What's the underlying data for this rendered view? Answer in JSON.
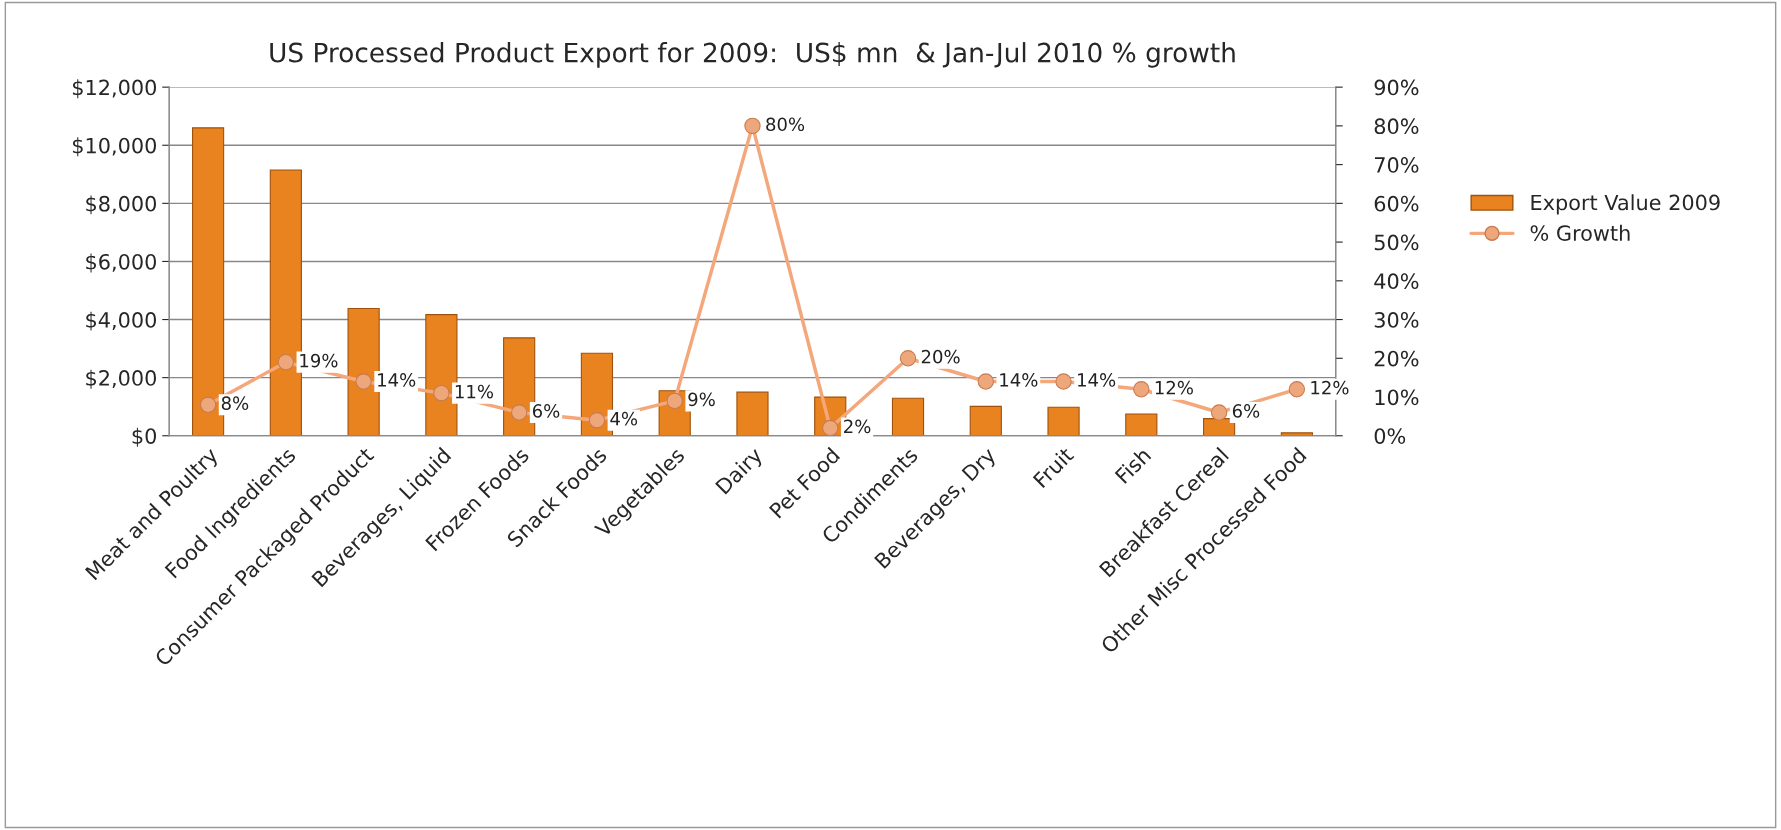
{
  "chart_data": {
    "type": "bar",
    "title": "US Processed Product Export for 2009:  US$ mn  & Jan-Jul 2010 % growth",
    "categories": [
      "Meat and Poultry",
      "Food Ingredients",
      "Consumer Packaged Product",
      "Beverages, Liquid",
      "Frozen Foods",
      "Snack Foods",
      "Vegetables",
      "Dairy",
      "Pet Food",
      "Condiments",
      "Beverages, Dry",
      "Fruit",
      "Fish",
      "Breakfast Cereal",
      "Other Misc Processed Food"
    ],
    "series": [
      {
        "name": "Export Value 2009",
        "color": "#e8831f",
        "values": [
          10600,
          9150,
          4380,
          4170,
          3370,
          2840,
          1550,
          1500,
          1330,
          1290,
          1010,
          980,
          750,
          590,
          100
        ]
      },
      {
        "name": "% Growth",
        "type": "line",
        "axis": "y2",
        "color": "#f5a77c",
        "marker": "circle",
        "values": [
          8,
          19,
          14,
          11,
          6,
          4,
          9,
          80,
          2,
          20,
          14,
          14,
          12,
          6,
          12
        ],
        "value_labels": [
          "8%",
          "19%",
          "14%",
          "11%",
          "6%",
          "4%",
          "9%",
          "80%",
          "2%",
          "20%",
          "14%",
          "14%",
          "12%",
          "6%",
          "12%"
        ]
      }
    ],
    "ylim": [
      0,
      12000
    ],
    "yticks": [
      {
        "value": 0,
        "label": "$0"
      },
      {
        "value": 2000,
        "label": "$2,000"
      },
      {
        "value": 4000,
        "label": "$4,000"
      },
      {
        "value": 6000,
        "label": "$6,000"
      },
      {
        "value": 8000,
        "label": "$8,000"
      },
      {
        "value": 10000,
        "label": "$10,000"
      },
      {
        "value": 12000,
        "label": "$12,000"
      }
    ],
    "y2lim": [
      0,
      90
    ],
    "y2ticks": [
      {
        "value": 0,
        "label": "0%"
      },
      {
        "value": 10,
        "label": "10%"
      },
      {
        "value": 20,
        "label": "20%"
      },
      {
        "value": 30,
        "label": "30%"
      },
      {
        "value": 40,
        "label": "40%"
      },
      {
        "value": 50,
        "label": "50%"
      },
      {
        "value": 60,
        "label": "60%"
      },
      {
        "value": 70,
        "label": "70%"
      },
      {
        "value": 80,
        "label": "80%"
      },
      {
        "value": 90,
        "label": "90%"
      }
    ],
    "grid": "y",
    "legend": "right"
  }
}
